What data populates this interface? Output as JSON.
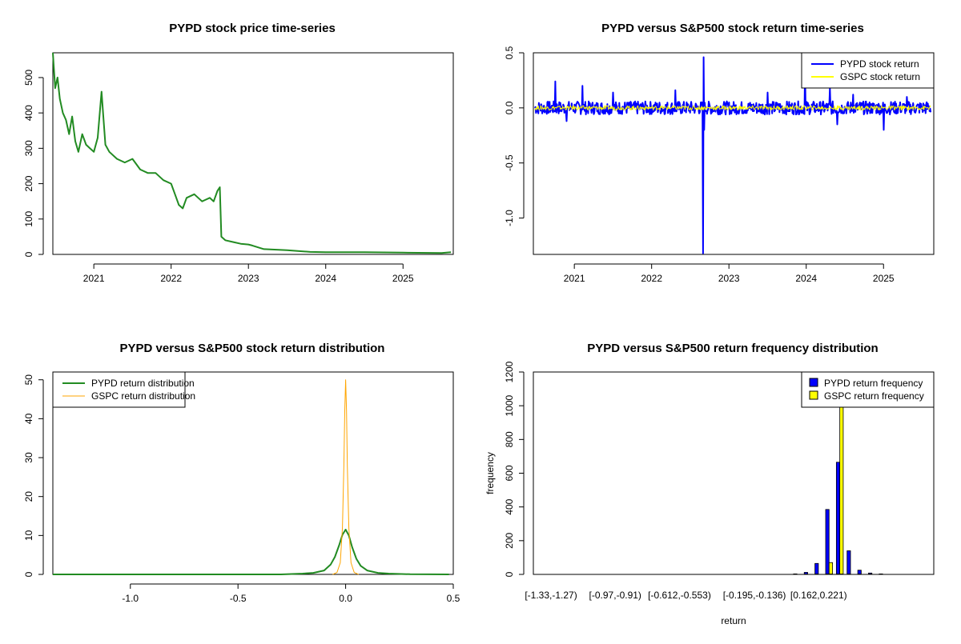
{
  "colors": {
    "pypd_price": "#228B22",
    "pypd_return": "#0000FF",
    "gspc_return": "#FFFF00",
    "pypd_density": "#228B22",
    "gspc_density": "#FFA500",
    "pypd_bar": "#0000FF",
    "gspc_bar": "#FFFF00"
  },
  "chart_data": [
    {
      "type": "line",
      "title": "PYPD stock price time-series",
      "xlabel": "",
      "ylabel": "",
      "xlim": [
        2020.47,
        2025.65
      ],
      "ylim": [
        0,
        570
      ],
      "x_ticks": [
        2021,
        2022,
        2023,
        2024,
        2025
      ],
      "x_tick_labels": [
        "2021",
        "2022",
        "2023",
        "2024",
        "2025"
      ],
      "y_ticks": [
        0,
        100,
        200,
        300,
        400,
        500
      ],
      "y_tick_labels": [
        "0",
        "100",
        "200",
        "300",
        "400",
        "500"
      ],
      "series": [
        {
          "color": "#228B22",
          "x": [
            2020.47,
            2020.5,
            2020.53,
            2020.56,
            2020.6,
            2020.64,
            2020.68,
            2020.72,
            2020.76,
            2020.8,
            2020.85,
            2020.9,
            2020.95,
            2021.0,
            2021.05,
            2021.1,
            2021.12,
            2021.15,
            2021.2,
            2021.3,
            2021.4,
            2021.5,
            2021.6,
            2021.7,
            2021.8,
            2021.9,
            2022.0,
            2022.05,
            2022.1,
            2022.15,
            2022.2,
            2022.3,
            2022.4,
            2022.5,
            2022.55,
            2022.6,
            2022.63,
            2022.65,
            2022.7,
            2022.8,
            2022.9,
            2023.0,
            2023.05,
            2023.2,
            2023.5,
            2023.8,
            2024.0,
            2024.5,
            2025.0,
            2025.5,
            2025.62
          ],
          "y": [
            570,
            470,
            500,
            440,
            400,
            380,
            340,
            390,
            320,
            290,
            340,
            310,
            300,
            290,
            330,
            460,
            400,
            310,
            290,
            270,
            260,
            270,
            240,
            230,
            230,
            210,
            200,
            170,
            140,
            130,
            160,
            170,
            150,
            160,
            150,
            180,
            190,
            50,
            40,
            35,
            30,
            28,
            25,
            15,
            12,
            7,
            6,
            6,
            5,
            4,
            6
          ]
        }
      ]
    },
    {
      "type": "line",
      "title": "PYPD versus S&P500 stock return time-series",
      "xlabel": "",
      "ylabel": "",
      "xlim": [
        2020.47,
        2025.65
      ],
      "ylim": [
        -1.33,
        0.5
      ],
      "x_ticks": [
        2021,
        2022,
        2023,
        2024,
        2025
      ],
      "x_tick_labels": [
        "2021",
        "2022",
        "2023",
        "2024",
        "2025"
      ],
      "y_ticks": [
        -1.0,
        -0.5,
        0.0,
        0.5
      ],
      "y_tick_labels": [
        "-1.0",
        "-0.5",
        "0.0",
        "0.5"
      ],
      "legend_position": "top-right",
      "series": [
        {
          "name": "PYPD stock return",
          "color": "#0000FF",
          "band": 0.06,
          "spikes": [
            [
              2020.75,
              0.24
            ],
            [
              2020.9,
              -0.12
            ],
            [
              2021.1,
              0.2
            ],
            [
              2021.5,
              0.14
            ],
            [
              2022.3,
              0.16
            ],
            [
              2022.66,
              -1.32
            ],
            [
              2022.67,
              0.46
            ],
            [
              2022.68,
              -0.2
            ],
            [
              2023.5,
              0.14
            ],
            [
              2023.98,
              0.36
            ],
            [
              2024.3,
              0.18
            ],
            [
              2024.4,
              -0.15
            ],
            [
              2024.6,
              0.12
            ],
            [
              2025.0,
              -0.2
            ],
            [
              2025.3,
              0.1
            ]
          ]
        },
        {
          "name": "GSPC stock return",
          "color": "#FFFF00",
          "band": 0.02,
          "spikes": []
        }
      ]
    },
    {
      "type": "line",
      "title": "PYPD versus S&P500 stock return distribution",
      "xlabel": "",
      "ylabel": "",
      "xlim": [
        -1.36,
        0.5
      ],
      "ylim": [
        0,
        52
      ],
      "x_ticks": [
        -1.0,
        -0.5,
        0.0,
        0.5
      ],
      "x_tick_labels": [
        "-1.0",
        "-0.5",
        "0.0",
        "0.5"
      ],
      "y_ticks": [
        0,
        10,
        20,
        30,
        40,
        50
      ],
      "y_tick_labels": [
        "0",
        "10",
        "20",
        "30",
        "40",
        "50"
      ],
      "legend_position": "top-left",
      "series": [
        {
          "name": "PYPD return distribution",
          "color": "#228B22",
          "x": [
            -1.36,
            -0.3,
            -0.2,
            -0.15,
            -0.1,
            -0.07,
            -0.05,
            -0.03,
            -0.015,
            0.0,
            0.015,
            0.03,
            0.05,
            0.07,
            0.1,
            0.15,
            0.2,
            0.3,
            0.48
          ],
          "y": [
            0,
            0,
            0.2,
            0.4,
            1.0,
            2.5,
            4.5,
            7.5,
            10.2,
            11.5,
            10.0,
            7.0,
            4.0,
            2.2,
            1.0,
            0.4,
            0.2,
            0.05,
            0
          ]
        },
        {
          "name": "GSPC return distribution",
          "color": "#FFA500",
          "x": [
            -0.06,
            -0.04,
            -0.025,
            -0.015,
            -0.008,
            -0.004,
            0.0,
            0.004,
            0.008,
            0.015,
            0.025,
            0.04,
            0.06
          ],
          "y": [
            0,
            0.5,
            3.0,
            12.0,
            28.0,
            42.0,
            50.0,
            42.0,
            28.0,
            12.0,
            3.0,
            0.5,
            0
          ]
        }
      ]
    },
    {
      "type": "bar",
      "title": "PYPD versus S&P500 return frequency distribution",
      "xlabel": "return",
      "ylabel": "frequency",
      "ylim": [
        0,
        1200
      ],
      "y_ticks": [
        0,
        200,
        400,
        600,
        800,
        1000,
        1200
      ],
      "y_tick_labels": [
        "0",
        "200",
        "400",
        "600",
        "800",
        "1000",
        "1200"
      ],
      "x_tick_labels_shown": [
        "[-1.33,-1.27)",
        "[-0.97,-0.91)",
        "[-0.612,-0.553)",
        "[-0.195,-0.136)",
        "[0.162,0.221)"
      ],
      "legend_position": "top-right",
      "series": [
        {
          "name": "PYPD return frequency",
          "color": "#0000FF",
          "values": [
            1,
            0,
            0,
            0,
            0,
            0,
            0,
            0,
            0,
            0,
            0,
            0,
            0,
            0,
            0,
            0,
            0,
            0,
            0,
            0,
            0,
            0,
            1,
            3,
            12,
            65,
            385,
            665,
            140,
            25,
            8,
            3,
            1,
            0,
            0
          ]
        },
        {
          "name": "GSPC return frequency",
          "color": "#FFFF00",
          "values": [
            0,
            0,
            0,
            0,
            0,
            0,
            0,
            0,
            0,
            0,
            0,
            0,
            0,
            0,
            0,
            0,
            0,
            0,
            0,
            0,
            0,
            0,
            0,
            0,
            0,
            0,
            70,
            1220,
            0,
            0,
            0,
            0,
            0,
            0,
            0
          ]
        }
      ]
    }
  ]
}
